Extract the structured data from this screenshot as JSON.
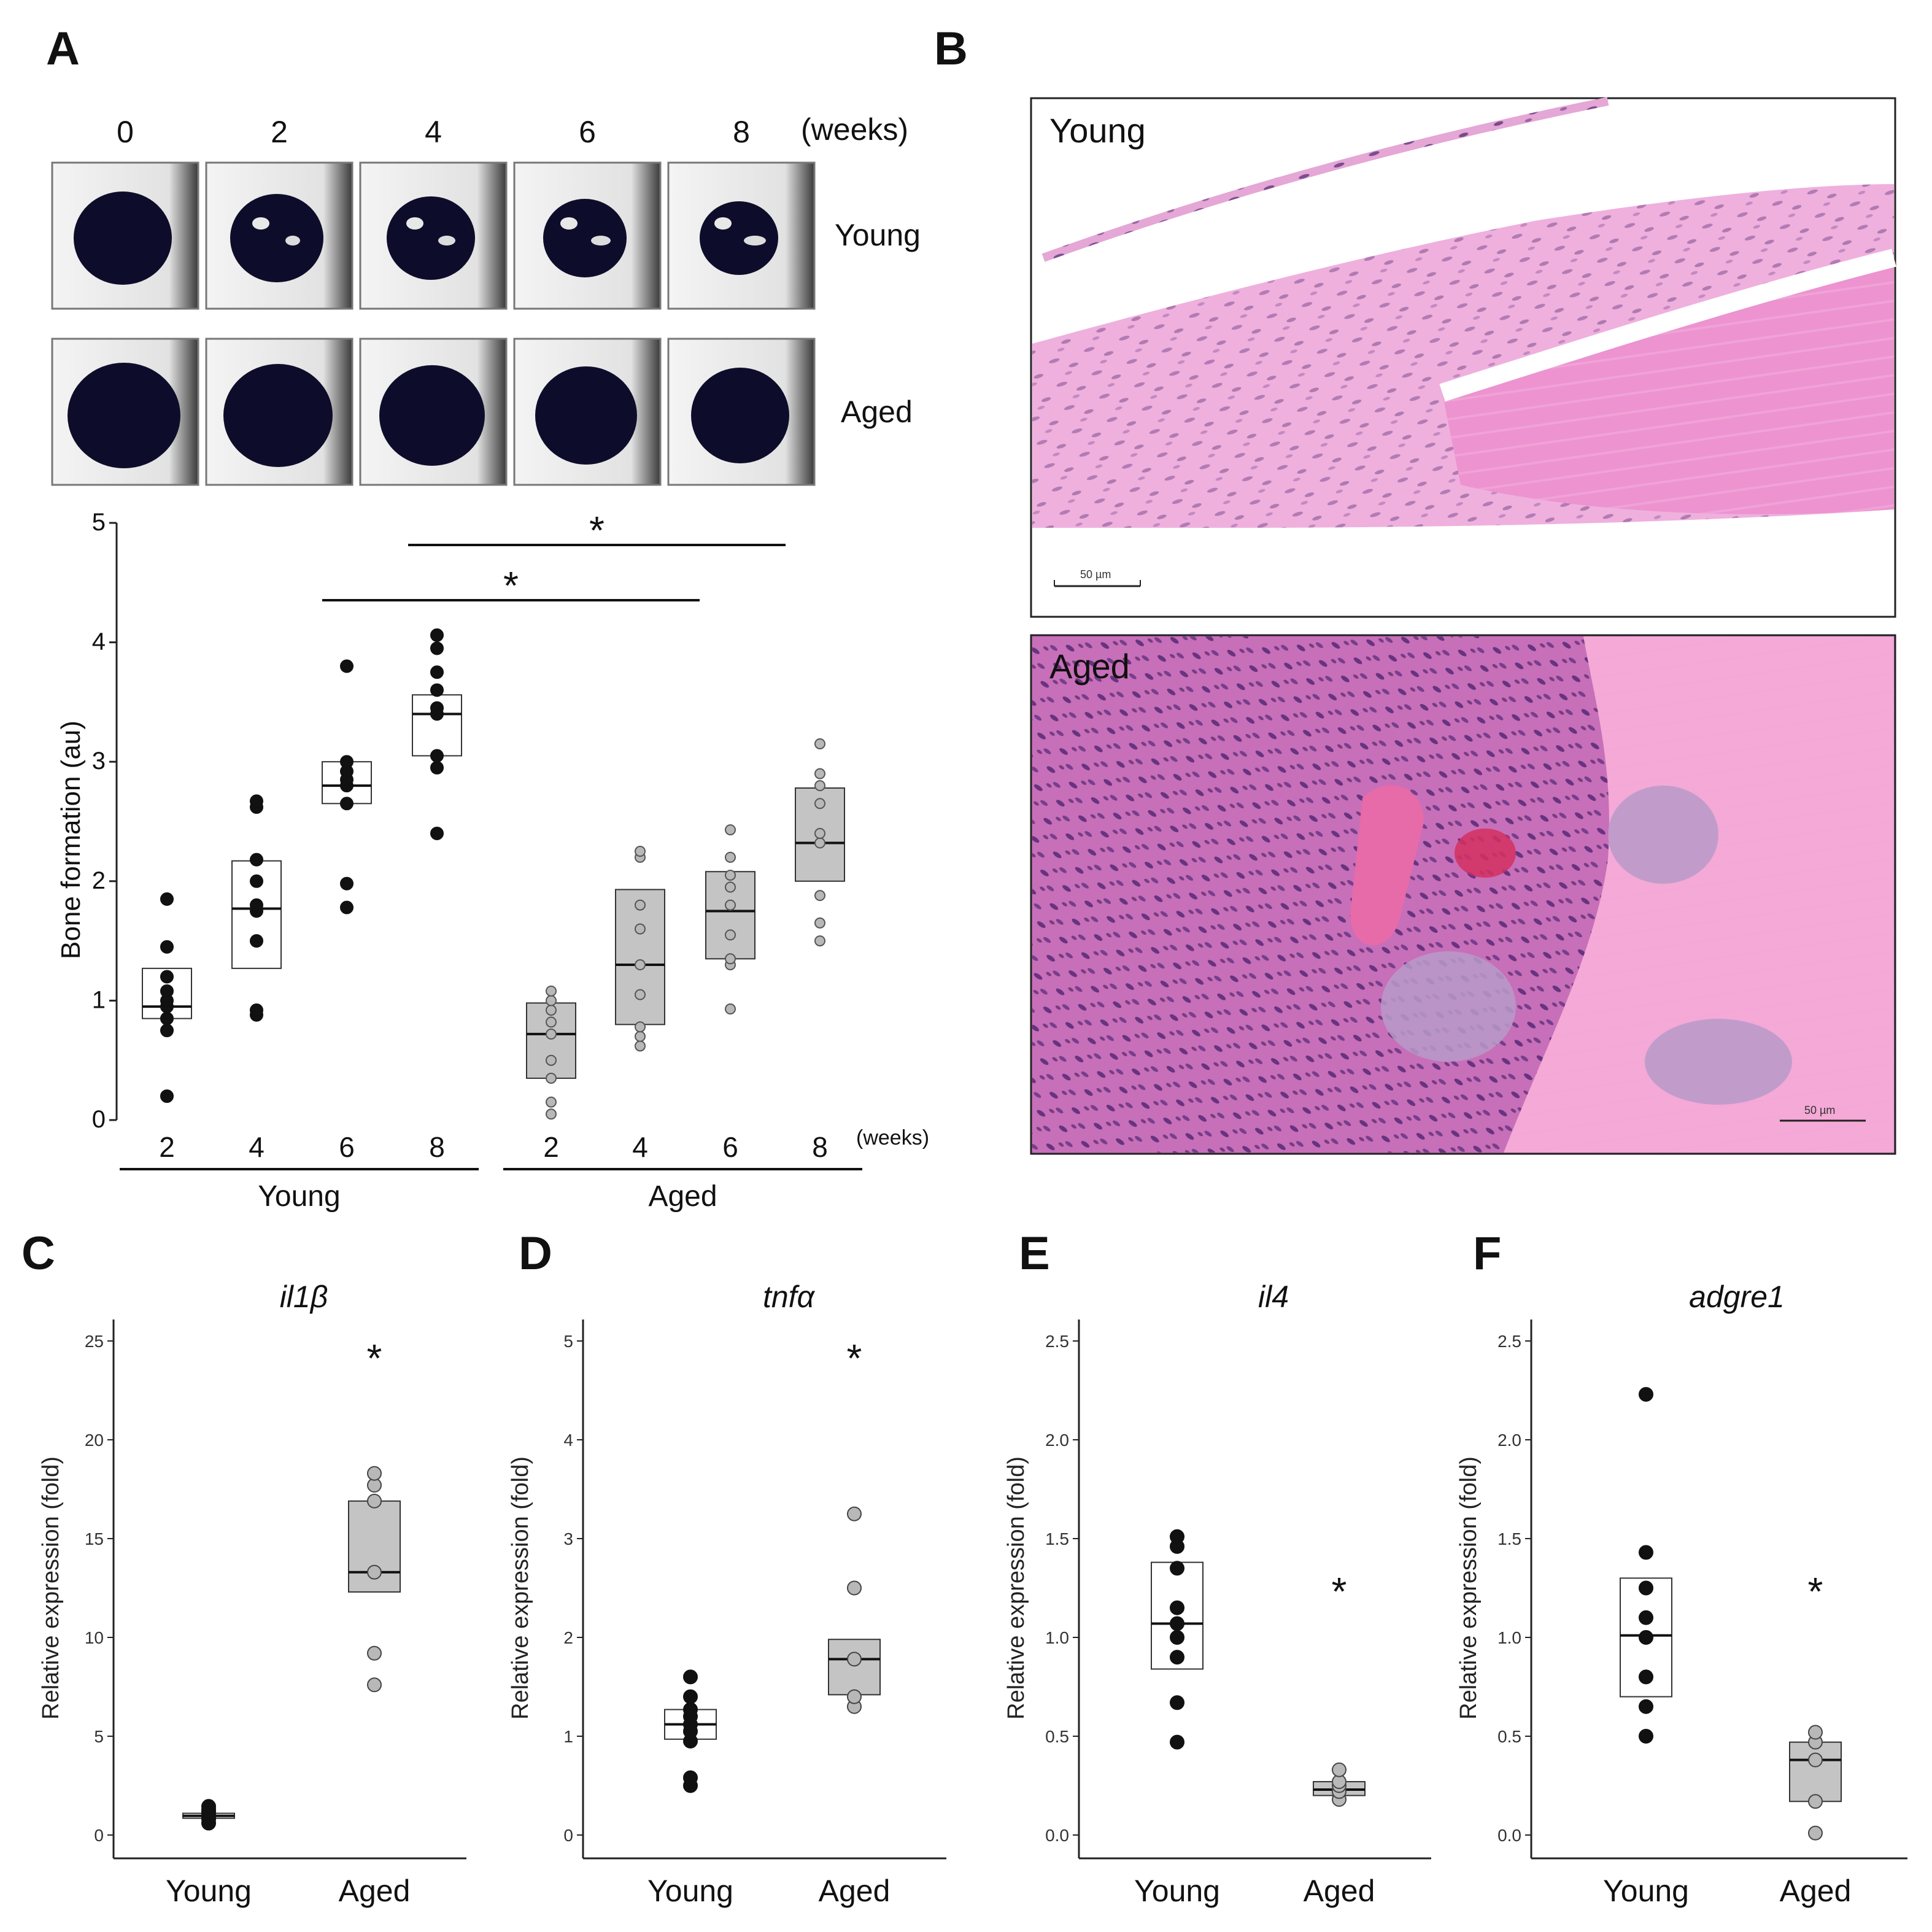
{
  "panels": {
    "A": "A",
    "B": "B",
    "C": "C",
    "D": "D",
    "E": "E",
    "F": "F"
  },
  "panelA": {
    "image_timepoints": [
      "0",
      "2",
      "4",
      "6",
      "8"
    ],
    "image_unit": "(weeks)",
    "row_labels": [
      "Young",
      "Aged"
    ]
  },
  "panelB": {
    "young_label": "Young",
    "aged_label": "Aged",
    "scale_bar": "50 µm"
  },
  "colors": {
    "young_fill": "#ffffff",
    "aged_fill": "#c4c4c4",
    "young_point": "#111111",
    "aged_point": "#b8b8b8",
    "histo_pink": "#e98fcf",
    "histo_purple": "#6a3b86",
    "ct_dark": "#0d0d2b"
  },
  "chart_data": [
    {
      "id": "A",
      "type": "box-dot",
      "ylabel": "Bone formation (au)",
      "ylim": [
        0,
        5
      ],
      "yticks": [
        0,
        1,
        2,
        3,
        4,
        5
      ],
      "xunit": "(weeks)",
      "groups": [
        {
          "name": "Young",
          "categories": [
            "2",
            "4",
            "6",
            "8"
          ],
          "boxes": [
            {
              "q1": 0.85,
              "median": 0.95,
              "q3": 1.27,
              "points": [
                0.2,
                0.75,
                0.85,
                0.95,
                1.0,
                1.08,
                1.2,
                1.45,
                1.85
              ]
            },
            {
              "q1": 1.27,
              "median": 1.77,
              "q3": 2.17,
              "points": [
                0.88,
                0.92,
                1.5,
                1.75,
                1.8,
                2.0,
                2.18,
                2.62,
                2.67
              ]
            },
            {
              "q1": 2.65,
              "median": 2.8,
              "q3": 3.0,
              "points": [
                1.78,
                1.98,
                2.65,
                2.8,
                2.85,
                2.92,
                3.0,
                3.8
              ]
            },
            {
              "q1": 3.05,
              "median": 3.4,
              "q3": 3.56,
              "points": [
                2.4,
                2.95,
                3.05,
                3.4,
                3.45,
                3.6,
                3.75,
                3.95,
                4.06
              ]
            }
          ]
        },
        {
          "name": "Aged",
          "categories": [
            "2",
            "4",
            "6",
            "8"
          ],
          "boxes": [
            {
              "q1": 0.35,
              "median": 0.72,
              "q3": 0.98,
              "points": [
                0.05,
                0.15,
                0.35,
                0.5,
                0.72,
                0.82,
                0.92,
                1.0,
                1.08
              ]
            },
            {
              "q1": 0.8,
              "median": 1.3,
              "q3": 1.93,
              "points": [
                0.62,
                0.7,
                0.78,
                1.05,
                1.3,
                1.6,
                1.8,
                2.2,
                2.25
              ]
            },
            {
              "q1": 1.35,
              "median": 1.75,
              "q3": 2.08,
              "points": [
                0.93,
                1.3,
                1.35,
                1.55,
                1.8,
                1.95,
                2.05,
                2.2,
                2.43
              ]
            },
            {
              "q1": 2.0,
              "median": 2.32,
              "q3": 2.78,
              "points": [
                1.5,
                1.65,
                1.88,
                2.32,
                2.4,
                2.65,
                2.8,
                2.9,
                3.15
              ]
            }
          ]
        }
      ],
      "significance": [
        {
          "label": "*",
          "from": "Young 8",
          "to": "Aged 8"
        },
        {
          "label": "*",
          "from": "Young 6",
          "to": "Aged 6"
        }
      ]
    },
    {
      "id": "C",
      "type": "box-dot",
      "title": "il1β",
      "ylabel": "Relative expression (fold)",
      "ylim": [
        0,
        25
      ],
      "yticks": [
        0,
        5,
        10,
        15,
        20,
        25
      ],
      "categories": [
        "Young",
        "Aged"
      ],
      "boxes": [
        {
          "q1": 0.85,
          "median": 0.97,
          "q3": 1.1,
          "points": [
            0.6,
            0.8,
            0.9,
            1.0,
            1.1,
            1.2,
            1.3,
            1.45
          ]
        },
        {
          "q1": 12.3,
          "median": 13.3,
          "q3": 16.9,
          "points": [
            7.6,
            9.2,
            13.3,
            16.9,
            17.7,
            18.3
          ]
        }
      ],
      "significance": "*"
    },
    {
      "id": "D",
      "type": "box-dot",
      "title": "tnfα",
      "ylabel": "Relative expression (fold)",
      "ylim": [
        0,
        5
      ],
      "yticks": [
        0,
        1,
        2,
        3,
        4,
        5
      ],
      "categories": [
        "Young",
        "Aged"
      ],
      "boxes": [
        {
          "q1": 0.97,
          "median": 1.12,
          "q3": 1.27,
          "points": [
            0.5,
            0.58,
            0.95,
            1.05,
            1.12,
            1.2,
            1.27,
            1.4,
            1.6
          ]
        },
        {
          "q1": 1.42,
          "median": 1.78,
          "q3": 1.98,
          "points": [
            1.3,
            1.4,
            1.78,
            2.5,
            3.25
          ]
        }
      ],
      "significance": "*"
    },
    {
      "id": "E",
      "type": "box-dot",
      "title": "il4",
      "ylabel": "Relative expression (fold)",
      "ylim": [
        0,
        2.5
      ],
      "yticks": [
        "0.0",
        "0.5",
        "1.0",
        "1.5",
        "2.0",
        "2.5"
      ],
      "categories": [
        "Young",
        "Aged"
      ],
      "boxes": [
        {
          "q1": 0.84,
          "median": 1.07,
          "q3": 1.38,
          "points": [
            0.47,
            0.67,
            0.9,
            1.0,
            1.07,
            1.15,
            1.35,
            1.46,
            1.51
          ]
        },
        {
          "q1": 0.2,
          "median": 0.23,
          "q3": 0.27,
          "points": [
            0.18,
            0.22,
            0.25,
            0.27,
            0.33
          ]
        }
      ],
      "significance": "*"
    },
    {
      "id": "F",
      "type": "box-dot",
      "title": "adgre1",
      "ylabel": "Relative expression (fold)",
      "ylim": [
        0,
        2.5
      ],
      "yticks": [
        "0.0",
        "0.5",
        "1.0",
        "1.5",
        "2.0",
        "2.5"
      ],
      "categories": [
        "Young",
        "Aged"
      ],
      "boxes": [
        {
          "q1": 0.7,
          "median": 1.01,
          "q3": 1.3,
          "points": [
            0.5,
            0.65,
            0.8,
            1.0,
            1.1,
            1.25,
            1.43,
            2.23
          ]
        },
        {
          "q1": 0.17,
          "median": 0.38,
          "q3": 0.47,
          "points": [
            0.01,
            0.17,
            0.38,
            0.47,
            0.52
          ]
        }
      ],
      "significance": "*"
    }
  ]
}
